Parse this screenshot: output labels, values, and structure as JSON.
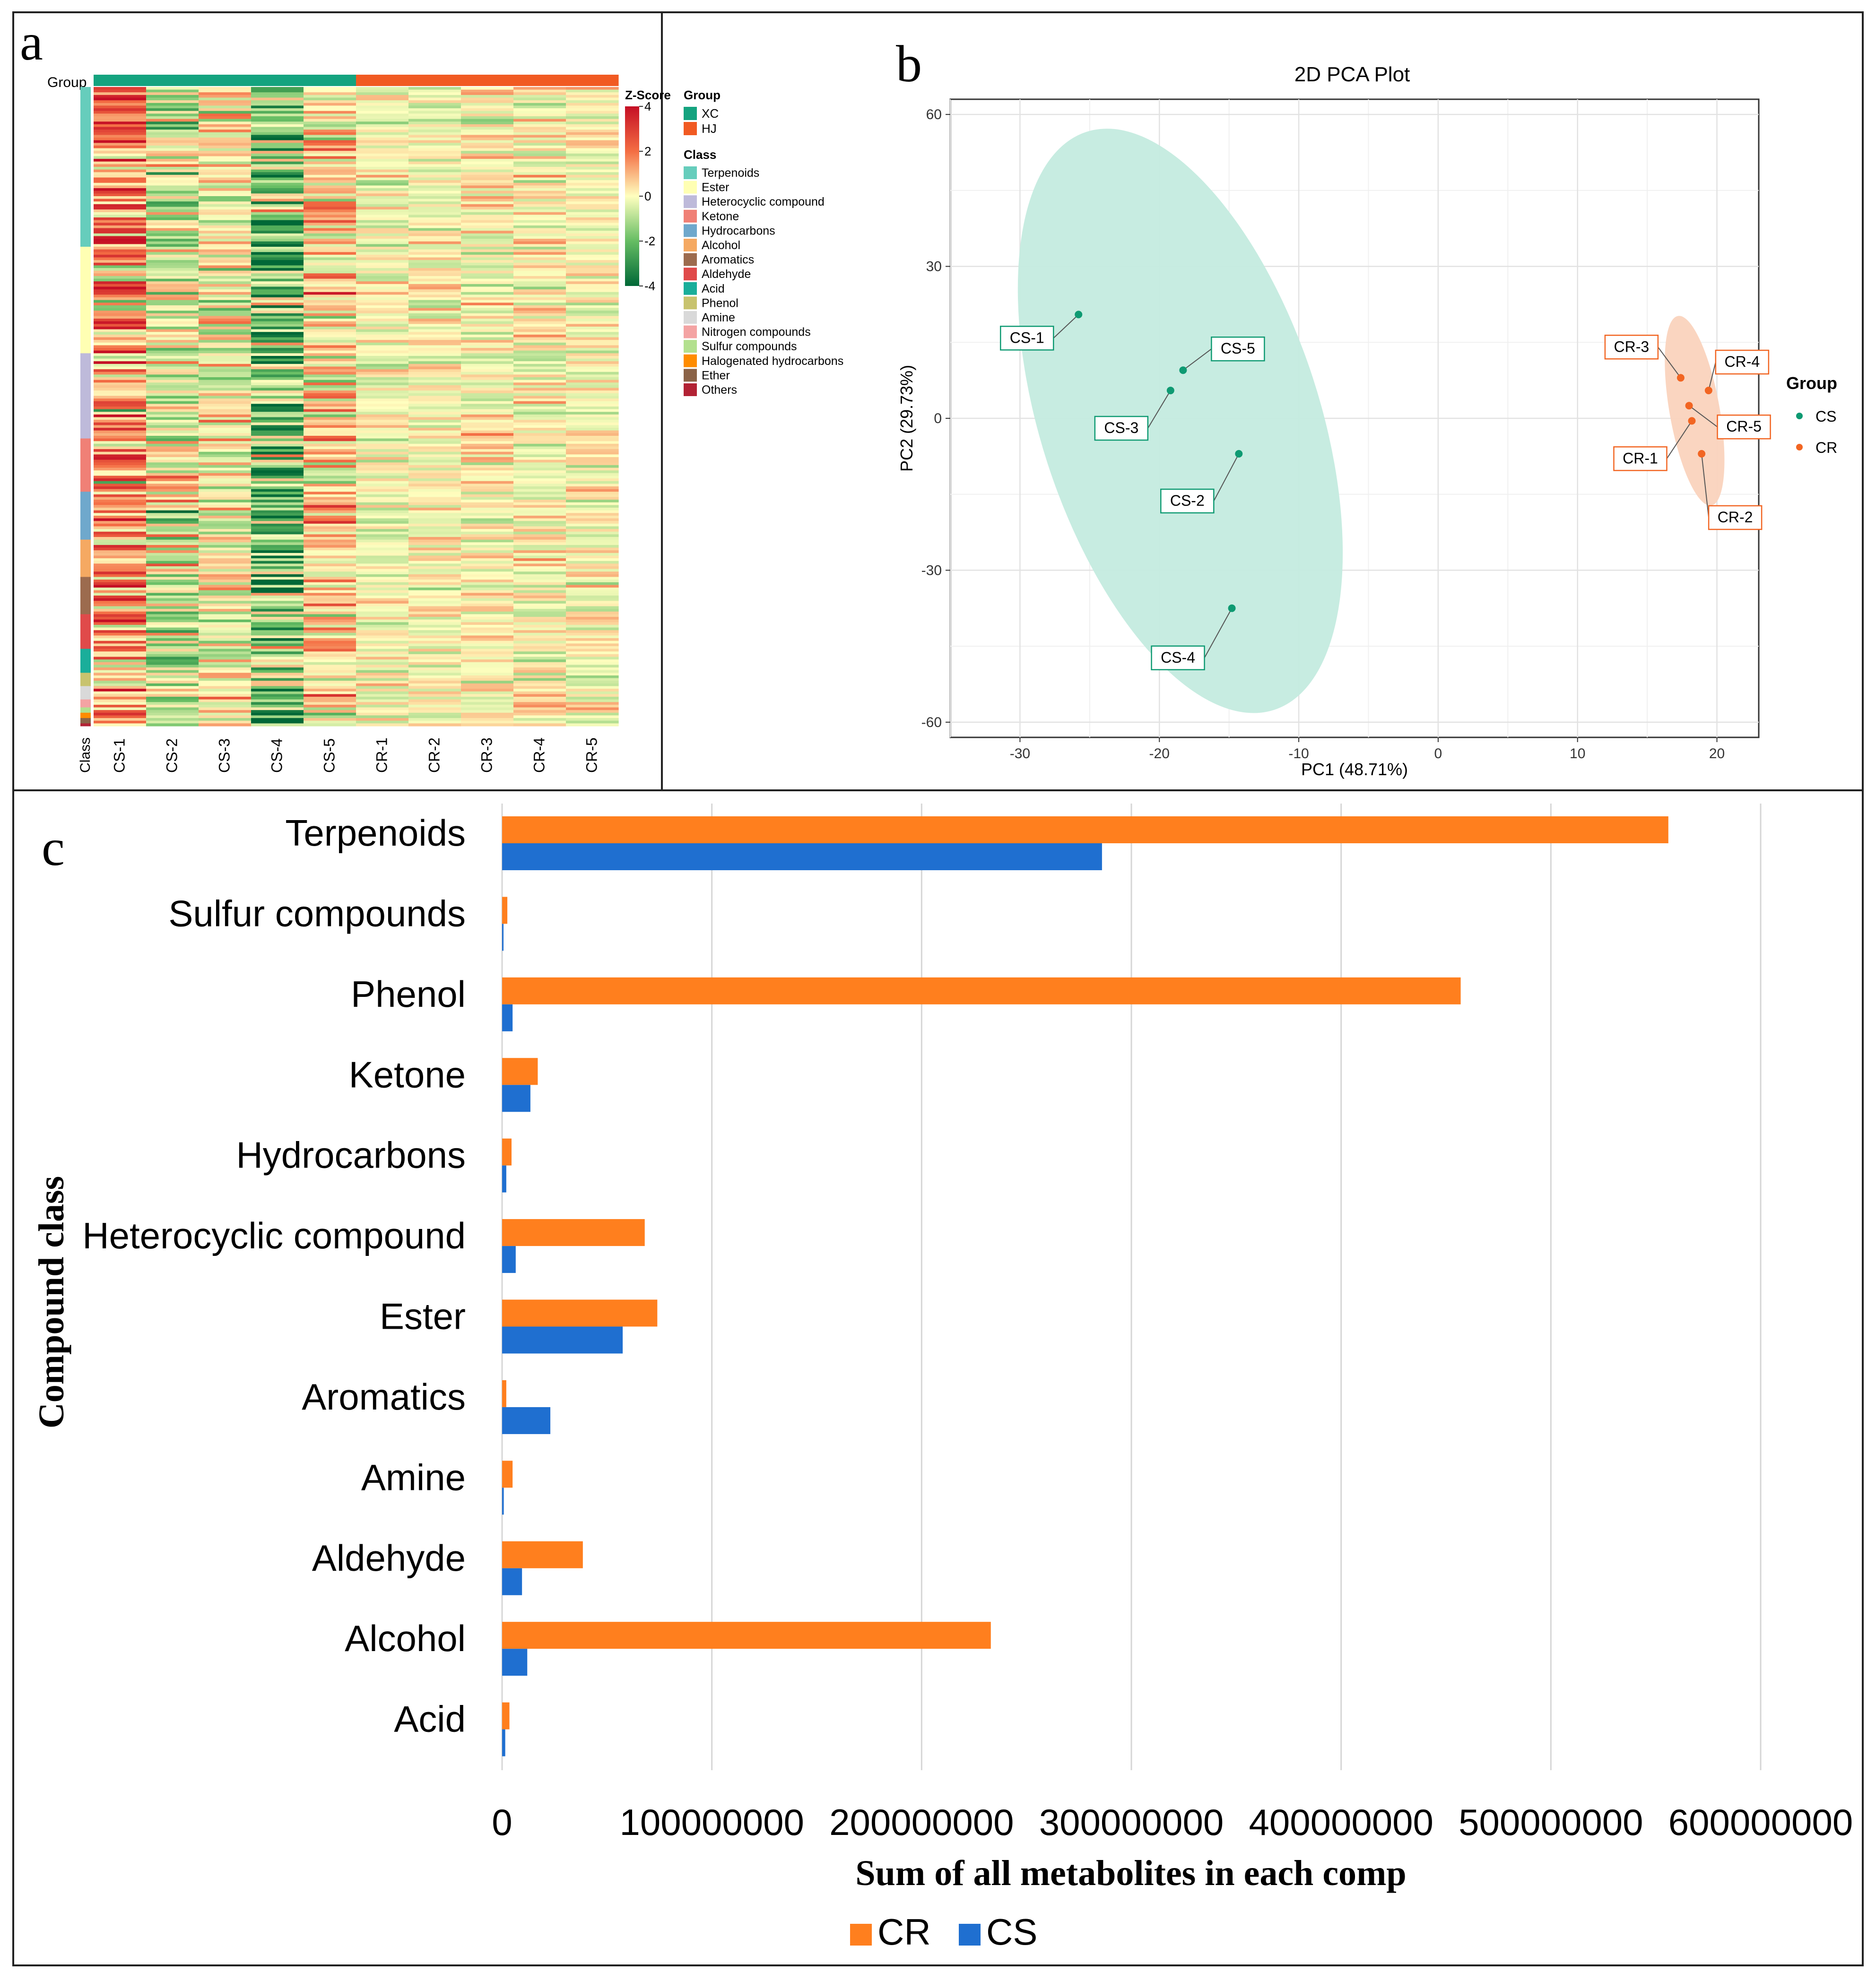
{
  "panel_letters": {
    "a": "a",
    "b": "b",
    "c": "c"
  },
  "colors": {
    "cs": "#0e9a72",
    "cr": "#f26522",
    "cs_bar": "#1f6fd0",
    "cr_bar": "#ff7f1e",
    "cs_ellipse": "#c4ebdf",
    "cr_ellipse": "#fad3bd",
    "heat_low": "#006837",
    "heat_mid": "#ffffbf",
    "heat_high": "#c50f25"
  },
  "chart_data": [
    {
      "id": "heatmap",
      "type": "heatmap",
      "group_label": "Group",
      "class_label": "Class",
      "columns": [
        "CS-1",
        "CS-2",
        "CS-3",
        "CS-4",
        "CS-5",
        "CR-1",
        "CR-2",
        "CR-3",
        "CR-4",
        "CR-5"
      ],
      "column_groups": [
        "XC",
        "XC",
        "XC",
        "XC",
        "XC",
        "HJ",
        "HJ",
        "HJ",
        "HJ",
        "HJ"
      ],
      "zscore": {
        "title": "Z-Score",
        "ticks": [
          "4",
          "2",
          "0",
          "-2",
          "-4"
        ],
        "range": [
          -4,
          4
        ]
      },
      "legend_group": {
        "title": "Group",
        "items": [
          {
            "label": "XC",
            "color": "#14a37f"
          },
          {
            "label": "HJ",
            "color": "#f15a22"
          }
        ]
      },
      "legend_class": {
        "title": "Class",
        "items": [
          {
            "label": "Terpenoids",
            "color": "#66cdbc",
            "rows": 60
          },
          {
            "label": "Ester",
            "color": "#ffffb3",
            "rows": 40
          },
          {
            "label": "Heterocyclic compound",
            "color": "#bebada",
            "rows": 32
          },
          {
            "label": "Ketone",
            "color": "#f08076",
            "rows": 20
          },
          {
            "label": "Hydrocarbons",
            "color": "#6fa8cc",
            "rows": 18
          },
          {
            "label": "Alcohol",
            "color": "#f5a962",
            "rows": 14
          },
          {
            "label": "Aromatics",
            "color": "#9c6b4e",
            "rows": 14
          },
          {
            "label": "Aldehyde",
            "color": "#e04a4a",
            "rows": 13
          },
          {
            "label": "Acid",
            "color": "#1aae9a",
            "rows": 9
          },
          {
            "label": "Phenol",
            "color": "#c8c36e",
            "rows": 5
          },
          {
            "label": "Amine",
            "color": "#d9d9d9",
            "rows": 5
          },
          {
            "label": "Nitrogen compounds",
            "color": "#f4a3a3",
            "rows": 3
          },
          {
            "label": "Sulfur compounds",
            "color": "#b3e08e",
            "rows": 2
          },
          {
            "label": "Halogenated hydrocarbons",
            "color": "#ff8c00",
            "rows": 2
          },
          {
            "label": "Ether",
            "color": "#8b6347",
            "rows": 2
          },
          {
            "label": "Others",
            "color": "#b22234",
            "rows": 1
          }
        ]
      }
    },
    {
      "id": "pca",
      "type": "scatter",
      "title": "2D PCA Plot",
      "xlabel": "PC1 (48.71%)",
      "ylabel": "PC2 (29.73%)",
      "xlim": [
        -35,
        23
      ],
      "ylim": [
        -63,
        63
      ],
      "xticks": [
        -30,
        -20,
        -10,
        0,
        10,
        20
      ],
      "yticks": [
        60,
        30,
        0,
        -30,
        -60
      ],
      "legend_title": "Group",
      "series": [
        {
          "name": "CS",
          "points": [
            {
              "label": "CS-1",
              "x": -25.8,
              "y": 20.5
            },
            {
              "label": "CS-2",
              "x": -14.3,
              "y": -7.0
            },
            {
              "label": "CS-3",
              "x": -19.2,
              "y": 5.5
            },
            {
              "label": "CS-4",
              "x": -14.8,
              "y": -37.5
            },
            {
              "label": "CS-5",
              "x": -18.3,
              "y": 9.5
            }
          ],
          "ellipse": {
            "cx": -18.5,
            "cy": -0.5,
            "rx": 10.0,
            "ry": 60.0,
            "angle": 18
          }
        },
        {
          "name": "CR",
          "points": [
            {
              "label": "CR-1",
              "x": 18.2,
              "y": -0.5
            },
            {
              "label": "CR-2",
              "x": 18.9,
              "y": -7.0
            },
            {
              "label": "CR-3",
              "x": 17.4,
              "y": 8.0
            },
            {
              "label": "CR-4",
              "x": 19.4,
              "y": 5.5
            },
            {
              "label": "CR-5",
              "x": 18.0,
              "y": 2.5
            }
          ],
          "ellipse": {
            "cx": 18.4,
            "cy": 1.5,
            "rx": 1.8,
            "ry": 19.0,
            "angle": 10
          }
        }
      ]
    },
    {
      "id": "bars",
      "type": "bar",
      "orientation": "horizontal",
      "xlabel": "Sum of all metabolites in each comp",
      "ylabel": "Compound class",
      "xlim": [
        0,
        600000000
      ],
      "xticks": [
        "0",
        "100000000",
        "200000000",
        "300000000",
        "400000000",
        "500000000",
        "600000000"
      ],
      "categories": [
        "Terpenoids",
        "Sulfur compounds",
        "Phenol",
        "Ketone",
        "Hydrocarbons",
        "Heterocyclic compound",
        "Ester",
        "Aromatics",
        "Amine",
        "Aldehyde",
        "Alcohol",
        "Acid"
      ],
      "series": [
        {
          "name": "CR",
          "values": [
            556000000,
            2500000,
            457000000,
            17000000,
            4500000,
            68000000,
            74000000,
            2000000,
            5000000,
            38500000,
            233000000,
            3500000
          ]
        },
        {
          "name": "CS",
          "values": [
            286000000,
            300000,
            5000000,
            13500000,
            2000000,
            6500000,
            57500000,
            23000000,
            800000,
            9500000,
            12000000,
            1500000
          ]
        }
      ]
    }
  ]
}
